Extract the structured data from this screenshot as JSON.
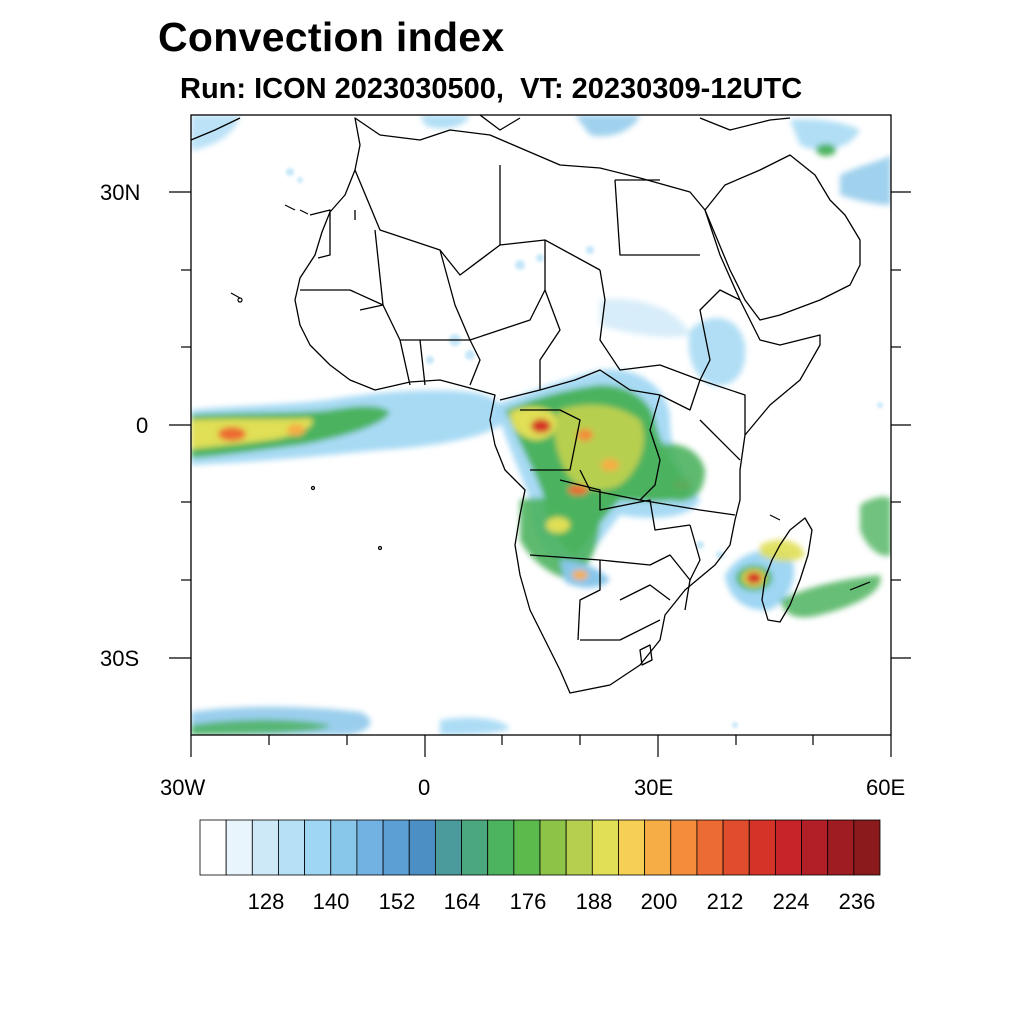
{
  "header": {
    "title": "Convection index",
    "subtitle": "Run: ICON 2023030500,  VT: 20230309-12UTC"
  },
  "map": {
    "region": "Africa",
    "lon_range": [
      -30,
      60
    ],
    "lat_range": [
      -40,
      40
    ],
    "lon_ticks": [
      {
        "value": -30,
        "label": "30W"
      },
      {
        "value": 0,
        "label": "0"
      },
      {
        "value": 30,
        "label": "30E"
      },
      {
        "value": 60,
        "label": "60E"
      }
    ],
    "lat_ticks": [
      {
        "value": 30,
        "label": "30N"
      },
      {
        "value": 0,
        "label": "0"
      },
      {
        "value": -30,
        "label": "30S"
      }
    ]
  },
  "colorbar": {
    "labels": [
      "128",
      "140",
      "152",
      "164",
      "176",
      "188",
      "200",
      "212",
      "224",
      "236"
    ],
    "colors": [
      "#ffffff",
      "#e8f5fc",
      "#cde9f8",
      "#b6e0f6",
      "#9ed6f3",
      "#88c6ea",
      "#72b2e2",
      "#5b9fd5",
      "#4c8fc4",
      "#4b9a9c",
      "#4aa77e",
      "#4cb35e",
      "#5cba4c",
      "#8dc448",
      "#b7cf4f",
      "#e0df55",
      "#f6cf55",
      "#f6ad45",
      "#f38d3b",
      "#ec6b32",
      "#e04d2c",
      "#d63328",
      "#c62428",
      "#b21f27",
      "#9e1c22",
      "#8a1a1c"
    ]
  }
}
